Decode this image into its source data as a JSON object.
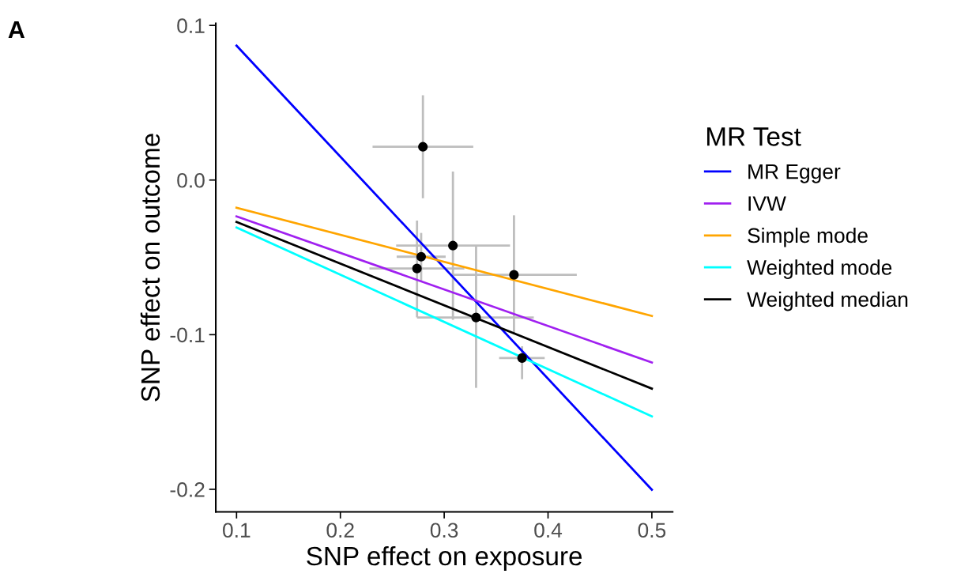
{
  "chart_data": {
    "type": "scatter",
    "xlabel": "SNP effect on exposure",
    "ylabel": "SNP effect on outcome",
    "legend_title": "MR Test",
    "legend": "right",
    "grid": false,
    "annotations": [
      "A"
    ],
    "xlim": [
      0.08,
      0.52
    ],
    "ylim": [
      -0.2146,
      0.1013
    ],
    "xticks": [
      0.1,
      0.2,
      0.3,
      0.4,
      0.5
    ],
    "yticks": [
      {
        "value": -0.2,
        "label": "-0.2"
      },
      {
        "value": -0.1,
        "label": "-0.1"
      },
      {
        "value": 0.0,
        "label": "0.0"
      },
      0.1
    ],
    "series": [
      {
        "marker": "circle",
        "color": "#000000",
        "x": [
          0.2795,
          0.3084,
          0.2778,
          0.2738,
          0.3672,
          0.3307,
          0.375
        ],
        "values": [
          0.0215,
          -0.0424,
          -0.0496,
          -0.0572,
          -0.0613,
          -0.0889,
          -0.1151
        ],
        "xerrors": [
          [
            0.231,
            0.328
          ],
          [
            0.2537,
            0.3634
          ],
          [
            0.2542,
            0.3014
          ],
          [
            0.228,
            0.3194
          ],
          [
            0.3066,
            0.4277
          ],
          [
            0.2738,
            0.3863
          ],
          [
            0.3529,
            0.3968
          ]
        ],
        "errors": [
          [
            -0.0118,
            0.0548
          ],
          [
            -0.0904,
            0.0055
          ],
          [
            -0.065,
            -0.0342
          ],
          [
            -0.0888,
            -0.0262
          ],
          [
            -0.0998,
            -0.0228
          ],
          [
            -0.1344,
            -0.0428
          ],
          [
            -0.1288,
            -0.1075
          ]
        ]
      },
      {
        "type": "line",
        "name": "MR Egger",
        "color": "#0000ff",
        "x": [
          0.1,
          0.5
        ],
        "values": [
          0.0869,
          -0.2003
        ]
      },
      {
        "type": "line",
        "name": "IVW",
        "color": "#a020f0",
        "x": [
          0.1,
          0.5
        ],
        "values": [
          -0.0235,
          -0.118
        ]
      },
      {
        "type": "line",
        "name": "Simple mode",
        "color": "#ffa500",
        "x": [
          0.1,
          0.5
        ],
        "values": [
          -0.0179,
          -0.0879
        ]
      },
      {
        "type": "line",
        "name": "Weighted mode",
        "color": "#00ffff",
        "x": [
          0.1,
          0.5
        ],
        "values": [
          -0.0307,
          -0.1528
        ]
      },
      {
        "type": "line",
        "name": "Weighted median",
        "color": "#000000",
        "x": [
          0.1,
          0.5
        ],
        "values": [
          -0.0271,
          -0.1349
        ]
      }
    ]
  }
}
